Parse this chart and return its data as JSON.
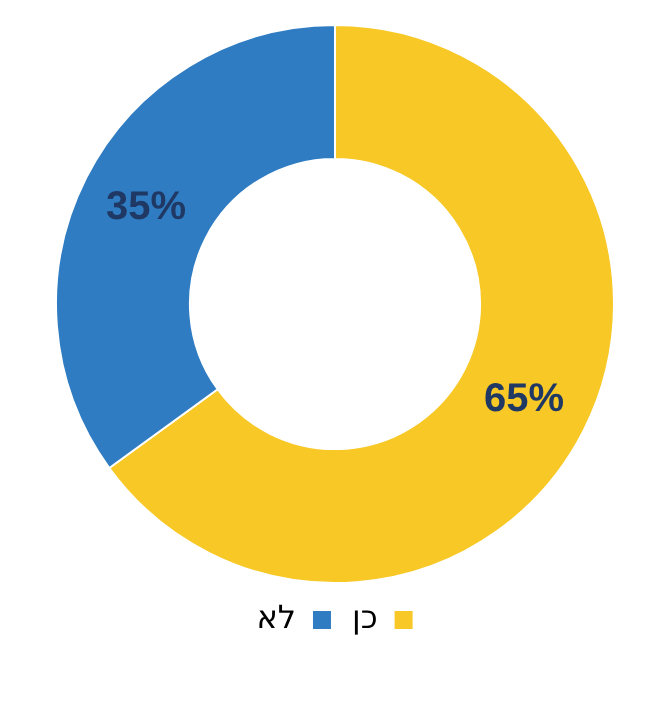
{
  "chart_data": {
    "type": "donut",
    "categories": [
      "כן",
      "לא"
    ],
    "values": [
      65,
      35
    ],
    "colors": [
      "#f7c826",
      "#2f7cc2"
    ],
    "value_labels": [
      "65%",
      "35%"
    ],
    "legend": "bottom"
  }
}
